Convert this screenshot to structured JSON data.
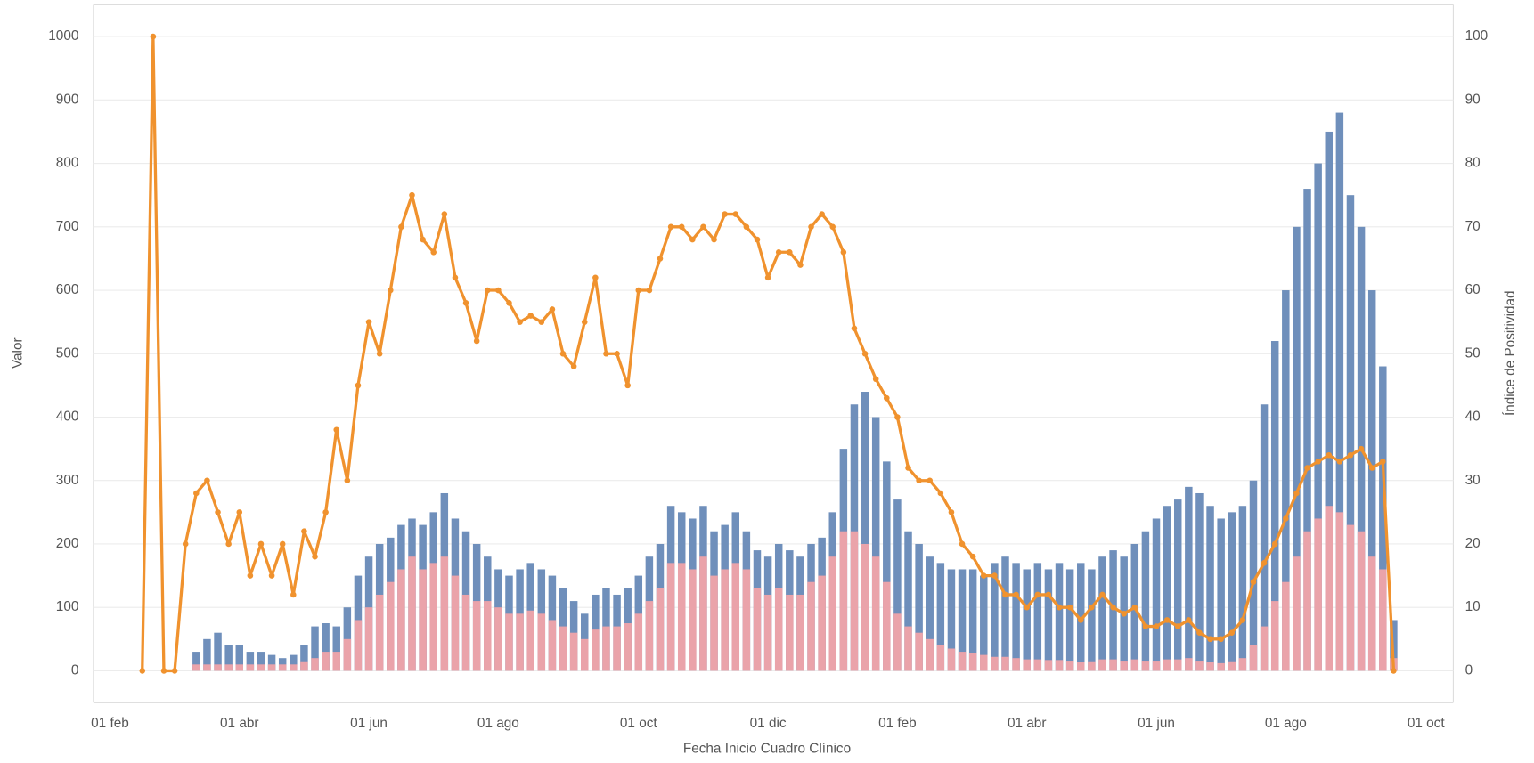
{
  "chart_data": {
    "type": "bar",
    "x_label": "Fecha Inicio Cuadro Clínico",
    "y_label": "Valor",
    "y2_label": "Índice de Positividad",
    "categories": [
      "01 feb",
      null,
      null,
      null,
      null,
      null,
      null,
      null,
      null,
      null,
      null,
      null,
      "01 abr",
      null,
      null,
      null,
      null,
      null,
      null,
      null,
      null,
      null,
      null,
      null,
      "01 jun",
      null,
      null,
      null,
      null,
      null,
      null,
      null,
      null,
      null,
      null,
      null,
      "01 ago",
      null,
      null,
      null,
      null,
      null,
      null,
      null,
      null,
      null,
      null,
      null,
      null,
      "01 oct",
      null,
      null,
      null,
      null,
      null,
      null,
      null,
      null,
      null,
      null,
      null,
      "01 dic",
      null,
      null,
      null,
      null,
      null,
      null,
      null,
      null,
      null,
      null,
      null,
      "01 feb",
      null,
      null,
      null,
      null,
      null,
      null,
      null,
      null,
      null,
      null,
      null,
      "01 abr",
      null,
      null,
      null,
      null,
      null,
      null,
      null,
      null,
      null,
      null,
      null,
      "01 jun",
      null,
      null,
      null,
      null,
      null,
      null,
      null,
      null,
      null,
      null,
      null,
      "01 ago",
      null,
      null,
      null,
      null,
      null,
      null,
      null,
      null,
      null,
      null,
      null,
      null,
      "01 oct"
    ],
    "series": [
      {
        "type": "bar",
        "color": "#6f8fbb",
        "values": [
          null,
          null,
          null,
          null,
          null,
          null,
          null,
          null,
          30,
          50,
          60,
          40,
          40,
          30,
          30,
          25,
          20,
          25,
          40,
          70,
          75,
          70,
          100,
          150,
          180,
          200,
          210,
          230,
          240,
          230,
          250,
          280,
          240,
          220,
          200,
          180,
          160,
          150,
          160,
          170,
          160,
          150,
          130,
          110,
          90,
          120,
          130,
          120,
          130,
          150,
          180,
          200,
          260,
          250,
          240,
          260,
          220,
          230,
          250,
          220,
          190,
          180,
          200,
          190,
          180,
          200,
          210,
          250,
          350,
          420,
          440,
          400,
          330,
          270,
          220,
          200,
          180,
          170,
          160,
          160,
          160,
          150,
          170,
          180,
          170,
          160,
          170,
          160,
          170,
          160,
          170,
          160,
          180,
          190,
          180,
          200,
          220,
          240,
          260,
          270,
          290,
          280,
          260,
          240,
          250,
          260,
          300,
          420,
          520,
          600,
          700,
          760,
          800,
          850,
          880,
          750,
          700,
          600,
          480,
          80,
          null,
          null,
          null
        ]
      },
      {
        "type": "bar",
        "color": "#eaa3aa",
        "values": [
          null,
          null,
          null,
          null,
          null,
          null,
          null,
          null,
          10,
          10,
          10,
          10,
          10,
          10,
          10,
          10,
          10,
          10,
          15,
          20,
          30,
          30,
          50,
          80,
          100,
          120,
          140,
          160,
          180,
          160,
          170,
          180,
          150,
          120,
          110,
          110,
          100,
          90,
          90,
          95,
          90,
          80,
          70,
          60,
          50,
          65,
          70,
          70,
          75,
          90,
          110,
          130,
          170,
          170,
          160,
          180,
          150,
          160,
          170,
          160,
          130,
          120,
          130,
          120,
          120,
          140,
          150,
          180,
          220,
          220,
          200,
          180,
          140,
          90,
          70,
          60,
          50,
          40,
          35,
          30,
          28,
          25,
          22,
          22,
          20,
          18,
          18,
          17,
          17,
          16,
          14,
          15,
          18,
          18,
          16,
          18,
          16,
          16,
          18,
          18,
          20,
          16,
          14,
          12,
          15,
          20,
          40,
          70,
          110,
          140,
          180,
          220,
          240,
          260,
          250,
          230,
          220,
          180,
          160,
          20,
          null,
          null,
          null
        ]
      },
      {
        "type": "line",
        "axis": "y2",
        "color": "#f0922e",
        "values": [
          null,
          null,
          null,
          0,
          100,
          0,
          0,
          20,
          28,
          30,
          25,
          20,
          25,
          15,
          20,
          15,
          20,
          12,
          22,
          18,
          25,
          38,
          30,
          45,
          55,
          50,
          60,
          70,
          75,
          68,
          66,
          72,
          62,
          58,
          52,
          60,
          60,
          58,
          55,
          56,
          55,
          57,
          50,
          48,
          55,
          62,
          50,
          50,
          45,
          60,
          60,
          65,
          70,
          70,
          68,
          70,
          68,
          72,
          72,
          70,
          68,
          62,
          66,
          66,
          64,
          70,
          72,
          70,
          66,
          54,
          50,
          46,
          43,
          40,
          32,
          30,
          30,
          28,
          25,
          20,
          18,
          15,
          15,
          12,
          12,
          10,
          12,
          12,
          10,
          10,
          8,
          10,
          12,
          10,
          9,
          10,
          7,
          7,
          8,
          7,
          8,
          6,
          5,
          5,
          6,
          8,
          14,
          17,
          20,
          24,
          28,
          32,
          33,
          34,
          33,
          34,
          35,
          32,
          33,
          0,
          null,
          null,
          null
        ]
      }
    ],
    "ylim": [
      -50,
      1050
    ],
    "yticks": [
      0,
      100,
      200,
      300,
      400,
      500,
      600,
      700,
      800,
      900,
      1000
    ],
    "y2lim": [
      -5,
      105
    ],
    "y2ticks": [
      0,
      10,
      20,
      30,
      40,
      50,
      60,
      70,
      80,
      90,
      100
    ],
    "grid": true
  }
}
